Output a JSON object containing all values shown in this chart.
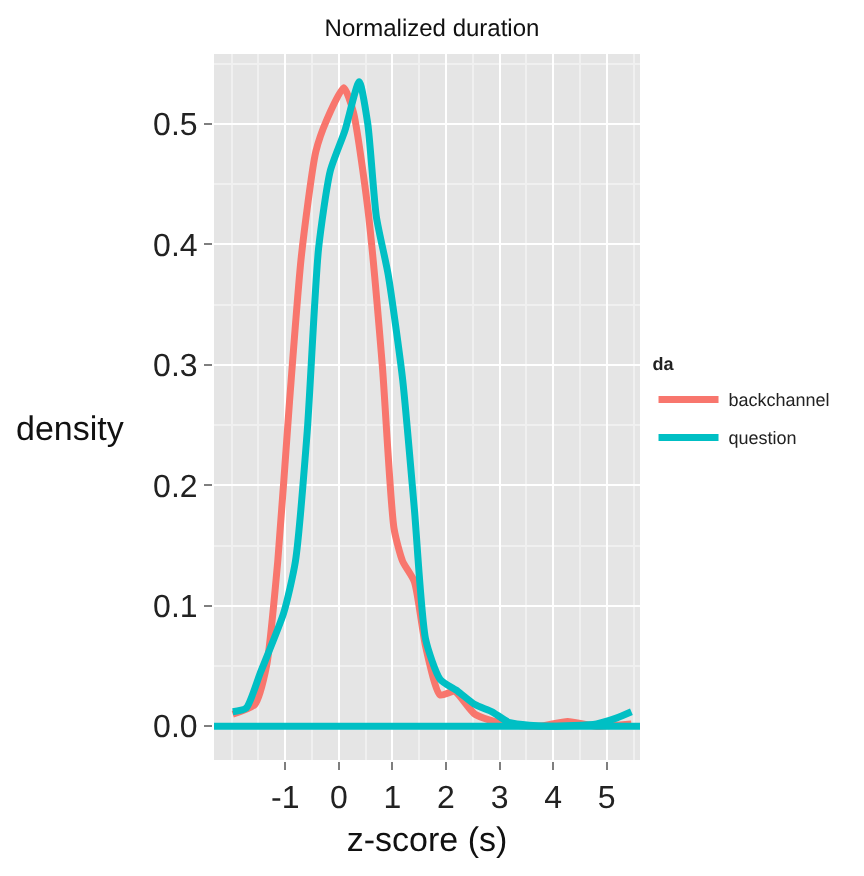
{
  "chart_data": {
    "type": "line",
    "title": "Normalized duration",
    "xlabel": "z-score (s)",
    "ylabel": "density",
    "legend_title": "da",
    "series": [
      {
        "name": "backchannel",
        "color": "#f8766d",
        "x": [
          -1.98,
          -1.57,
          -1.35,
          -1.14,
          -0.92,
          -0.7,
          -0.43,
          -0.22,
          0.09,
          0.27,
          0.54,
          0.81,
          1.03,
          1.19,
          1.41,
          1.62,
          1.89,
          2.16,
          2.54,
          3.08,
          3.73,
          4.27,
          4.81,
          5.46
        ],
        "values": [
          0.01,
          0.018,
          0.05,
          0.137,
          0.27,
          0.39,
          0.477,
          0.504,
          0.53,
          0.51,
          0.43,
          0.3,
          0.164,
          0.137,
          0.12,
          0.066,
          0.026,
          0.029,
          0.01,
          0.002,
          0.0,
          0.004,
          0.0,
          0.002
        ]
      },
      {
        "name": "question",
        "color": "#00bfc4",
        "x": [
          -1.98,
          -1.73,
          -1.46,
          -1.03,
          -0.81,
          -0.59,
          -0.38,
          -0.16,
          0.11,
          0.38,
          0.54,
          0.7,
          0.92,
          1.19,
          1.41,
          1.62,
          1.89,
          2.22,
          2.54,
          2.86,
          3.19,
          3.95,
          4.81,
          5.19,
          5.46
        ],
        "values": [
          0.012,
          0.015,
          0.045,
          0.094,
          0.137,
          0.245,
          0.396,
          0.461,
          0.494,
          0.535,
          0.5,
          0.423,
          0.375,
          0.288,
          0.18,
          0.072,
          0.039,
          0.029,
          0.018,
          0.012,
          0.003,
          0.0,
          0.002,
          0.007,
          0.012
        ]
      }
    ],
    "ref_lines": [
      {
        "axis": "y",
        "value": 0,
        "color": "#00bfc4"
      }
    ],
    "xlim": [
      -2.33,
      5.62
    ],
    "xticks": [
      -1,
      0,
      1,
      2,
      3,
      4,
      5
    ],
    "ylim": [
      -0.028,
      0.558
    ],
    "yticks": [
      {
        "value": 0,
        "label": "0.0"
      },
      0.1,
      0.2,
      0.3,
      0.4,
      0.5
    ],
    "grid": true,
    "legend": "right",
    "marker": "none",
    "line_style": "solid"
  }
}
